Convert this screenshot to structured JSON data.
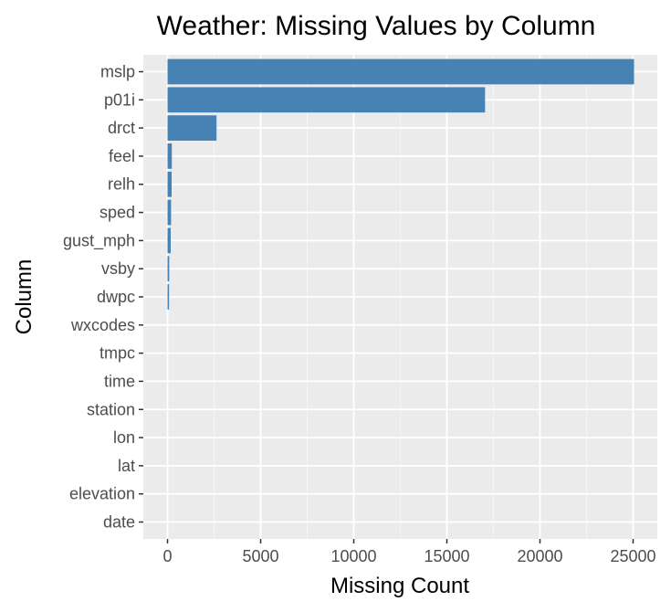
{
  "colors": {
    "panel_background": "#ebebeb",
    "grid_major": "#ffffff",
    "grid_minor": "#f5f5f5",
    "bar_fill": "#4682b4",
    "tick_color": "#333333",
    "tick_label_color": "#4d4d4d"
  },
  "chart_data": {
    "type": "bar",
    "orientation": "horizontal",
    "title": "Weather: Missing Values by Column",
    "xlabel": "Missing Count",
    "ylabel": "Column",
    "xlim": [
      -1300,
      26300
    ],
    "x_ticks": [
      0,
      5000,
      10000,
      15000,
      20000,
      25000
    ],
    "x_tick_labels": [
      "0",
      "5000",
      "10000",
      "15000",
      "20000",
      "25000"
    ],
    "grid": true,
    "legend": "none",
    "categories": [
      "mslp",
      "p01i",
      "drct",
      "feel",
      "relh",
      "sped",
      "gust_mph",
      "vsby",
      "dwpc",
      "wxcodes",
      "tmpc",
      "time",
      "station",
      "lon",
      "lat",
      "elevation",
      "date"
    ],
    "values": [
      25050,
      17050,
      2630,
      230,
      220,
      190,
      170,
      90,
      80,
      0,
      0,
      0,
      0,
      0,
      0,
      0,
      0
    ]
  }
}
